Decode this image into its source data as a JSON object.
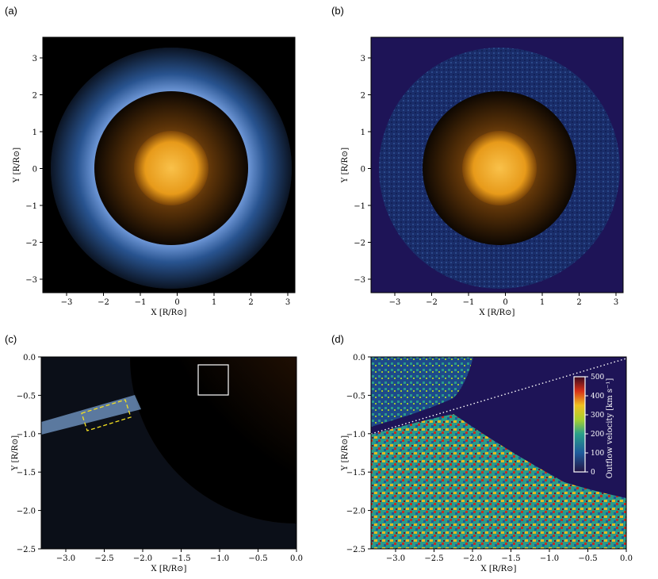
{
  "panels": [
    {
      "label": "(a)",
      "xlabel": "X [R/R⊙]",
      "ylabel": "Y [R/R⊙]",
      "xticks": [
        "−3",
        "−2",
        "−1",
        "0",
        "1",
        "2",
        "3"
      ],
      "yticks": [
        "3",
        "2",
        "1",
        "0",
        "−1",
        "−2",
        "−3"
      ]
    },
    {
      "label": "(b)",
      "xlabel": "X [R/R⊙]",
      "ylabel": "Y [R/R⊙]",
      "xticks": [
        "−3",
        "−2",
        "−1",
        "0",
        "1",
        "2",
        "3"
      ],
      "yticks": [
        "3",
        "2",
        "1",
        "0",
        "−1",
        "−2",
        "−3"
      ]
    },
    {
      "label": "(c)",
      "xlabel": "X [R/R⊙]",
      "ylabel": "Y [R/R⊙]",
      "xticks": [
        "−3.0",
        "−2.5",
        "−2.0",
        "−1.5",
        "−1.0",
        "−0.5",
        "0.0"
      ],
      "yticks": [
        "0.0",
        "−0.5",
        "−1.0",
        "−1.5",
        "−2.0",
        "−2.5"
      ]
    },
    {
      "label": "(d)",
      "xlabel": "X [R/R⊙]",
      "ylabel": "Y [R/R⊙]",
      "xticks": [
        "−3.0",
        "−2.5",
        "−2.0",
        "−1.5",
        "−1.0",
        "−0.5",
        "0.0"
      ],
      "yticks": [
        "0.0",
        "−0.5",
        "−1.0",
        "−1.5",
        "−2.0",
        "−2.5"
      ],
      "colorbar": {
        "label": "Outflow velocity [km s⁻¹]",
        "ticks": [
          "500",
          "400",
          "300",
          "200",
          "100",
          "0"
        ],
        "range": [
          0,
          500
        ]
      }
    }
  ],
  "colors": {
    "sun_core": "#f0a020",
    "corona_blue": "#a8c8ff",
    "background_dark": "#05040a",
    "highlight_box": "#ffffff",
    "dashed_box": "#f5e020"
  }
}
